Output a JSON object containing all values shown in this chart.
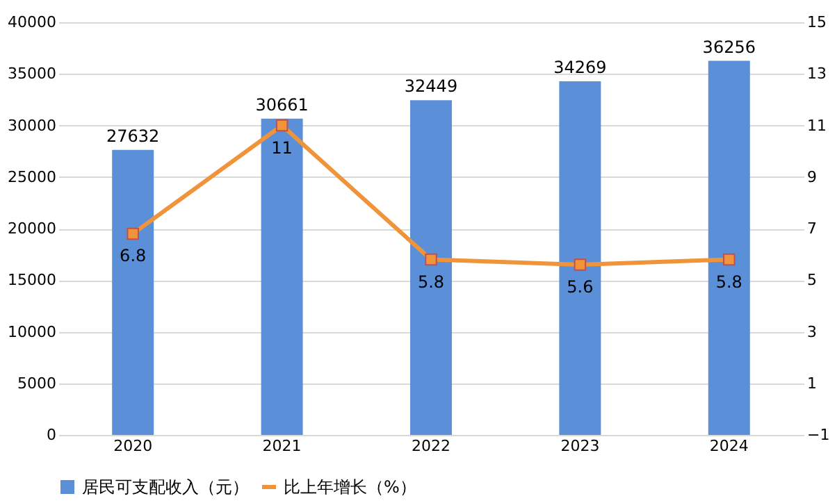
{
  "chart_data": {
    "type": "bar",
    "categories": [
      "2020",
      "2021",
      "2022",
      "2023",
      "2024"
    ],
    "series": [
      {
        "name": "居民可支配收入（元）",
        "color": "#5b8fd8",
        "values": [
          27632,
          30661,
          32449,
          34269,
          36256
        ]
      },
      {
        "name": "比上年增长（%）",
        "type": "line",
        "axis": "y2",
        "color": "#f0943c",
        "marker": "square",
        "line_style": "solid",
        "values": [
          6.8,
          11,
          5.8,
          5.6,
          5.8
        ]
      }
    ],
    "ylim": [
      0,
      40000
    ],
    "yticks": [
      0,
      5000,
      10000,
      15000,
      20000,
      25000,
      30000,
      35000,
      40000
    ],
    "y2lim": [
      -1,
      15
    ],
    "y2ticks": [
      -1,
      1,
      3,
      5,
      7,
      9,
      11,
      13,
      15
    ],
    "grid": "y",
    "legend": "bottom",
    "data_labels": true
  }
}
